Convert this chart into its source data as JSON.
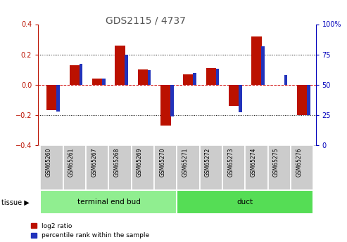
{
  "title": "GDS2115 / 4737",
  "samples": [
    "GSM65260",
    "GSM65261",
    "GSM65267",
    "GSM65268",
    "GSM65269",
    "GSM65270",
    "GSM65271",
    "GSM65272",
    "GSM65273",
    "GSM65274",
    "GSM65275",
    "GSM65276"
  ],
  "log2_ratio": [
    -0.17,
    0.13,
    0.04,
    0.26,
    0.1,
    -0.27,
    0.07,
    0.11,
    -0.14,
    0.32,
    0.0,
    -0.2
  ],
  "percentile_rank": [
    28,
    67,
    55,
    75,
    62,
    24,
    60,
    63,
    27,
    82,
    58,
    25
  ],
  "groups": [
    {
      "label": "terminal end bud",
      "start": 0,
      "end": 6,
      "color": "#90EE90"
    },
    {
      "label": "duct",
      "start": 6,
      "end": 12,
      "color": "#55DD55"
    }
  ],
  "ylim_left": [
    -0.4,
    0.4
  ],
  "ylim_right": [
    0,
    100
  ],
  "bar_color_red": "#BB1100",
  "bar_color_blue": "#2233BB",
  "dotted_line_color": "#000000",
  "zero_line_color": "#CC0000",
  "background_plot": "#FFFFFF",
  "background_label": "#CCCCCC",
  "right_axis_color": "#0000BB",
  "left_axis_color": "#BB1100",
  "title_color": "#555555",
  "legend_red_label": "log2 ratio",
  "legend_blue_label": "percentile rank within the sample",
  "tissue_group_label": "tissue"
}
